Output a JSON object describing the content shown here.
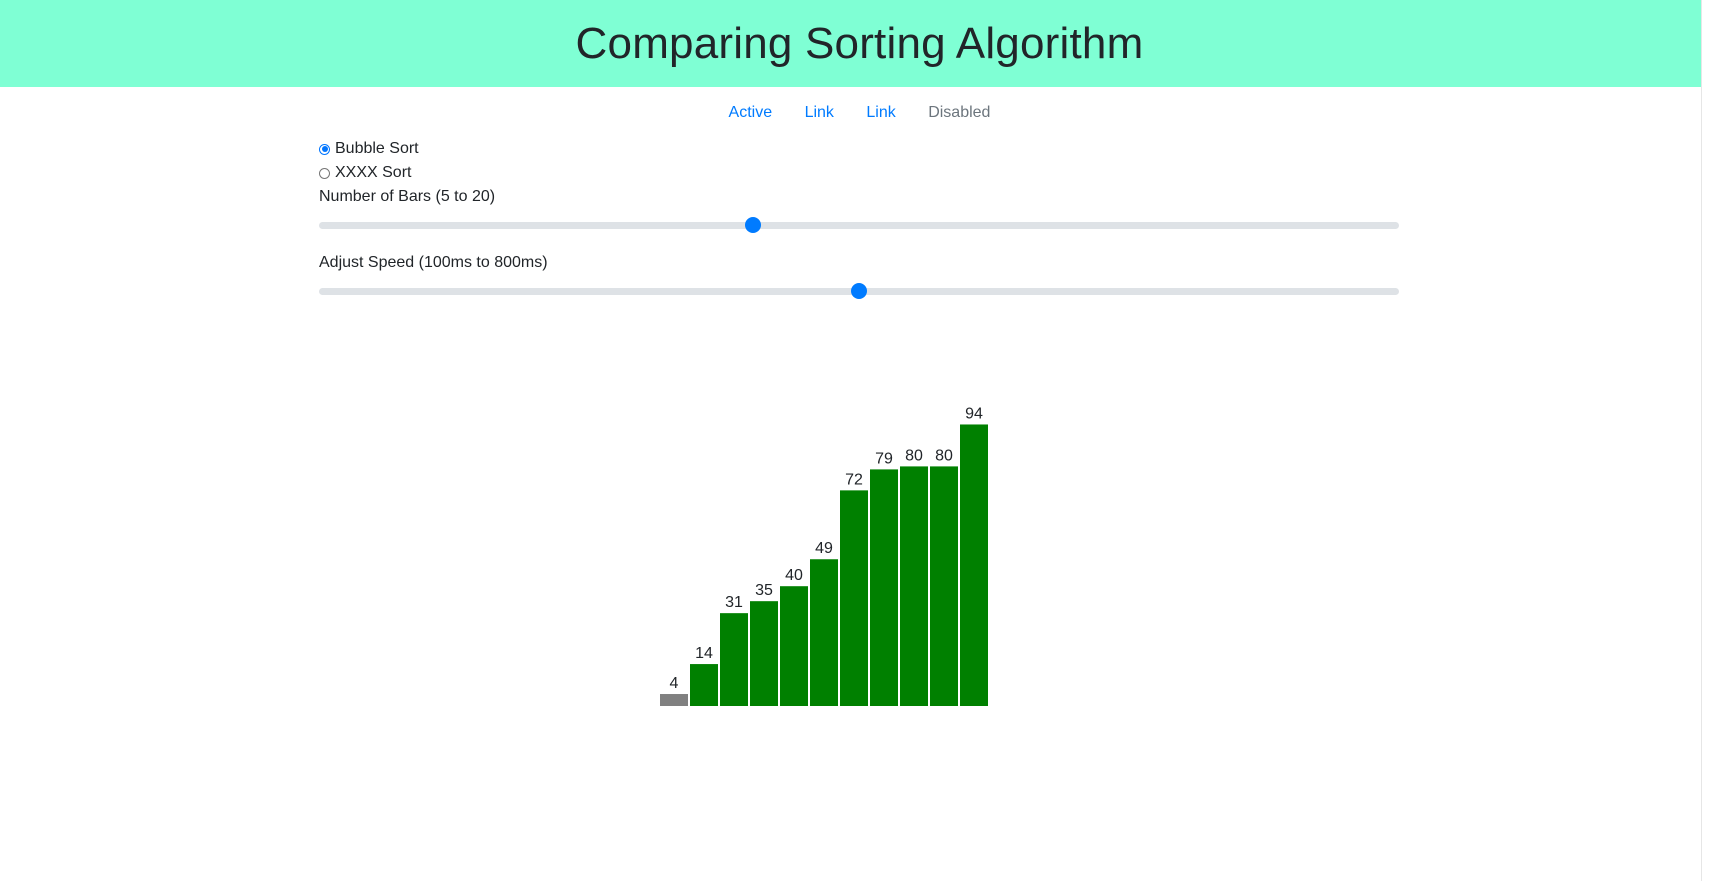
{
  "header": {
    "title": "Comparing Sorting Algorithm"
  },
  "nav": {
    "items": [
      {
        "label": "Active",
        "disabled": false
      },
      {
        "label": "Link",
        "disabled": false
      },
      {
        "label": "Link",
        "disabled": false
      },
      {
        "label": "Disabled",
        "disabled": true
      }
    ]
  },
  "controls": {
    "algorithms": [
      {
        "label": "Bubble Sort",
        "checked": true
      },
      {
        "label": "XXXX Sort",
        "checked": false
      }
    ],
    "bars_label": "Number of Bars (5 to 20)",
    "bars_value": 11,
    "bars_min": 5,
    "bars_max": 20,
    "speed_label": "Adjust Speed (100ms to 800ms)",
    "speed_value": 450,
    "speed_min": 100,
    "speed_max": 800
  },
  "colors": {
    "header_bg": "#7fffd4",
    "bar_sorted": "#008000",
    "bar_pending": "#808080",
    "accent": "#007bff"
  },
  "chart_data": {
    "type": "bar",
    "values": [
      4,
      14,
      31,
      35,
      40,
      49,
      72,
      79,
      80,
      80,
      94
    ],
    "states": [
      "pending",
      "sorted",
      "sorted",
      "sorted",
      "sorted",
      "sorted",
      "sorted",
      "sorted",
      "sorted",
      "sorted",
      "sorted"
    ],
    "title": "",
    "xlabel": "",
    "ylabel": "",
    "ylim": [
      0,
      100
    ],
    "grid": false
  }
}
